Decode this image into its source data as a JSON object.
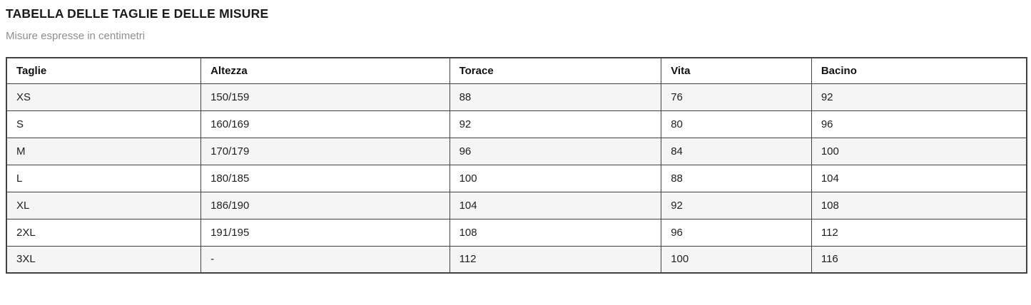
{
  "page": {
    "title": "TABELLA DELLE TAGLIE E DELLE MISURE",
    "subtitle": "Misure espresse in centimetri"
  },
  "table": {
    "columns": [
      "Taglie",
      "Altezza",
      "Torace",
      "Vita",
      "Bacino"
    ],
    "rows": [
      [
        "XS",
        "150/159",
        "88",
        "76",
        "92"
      ],
      [
        "S",
        "160/169",
        "92",
        "80",
        "96"
      ],
      [
        "M",
        "170/179",
        "96",
        "84",
        "100"
      ],
      [
        "L",
        "180/185",
        "100",
        "88",
        "104"
      ],
      [
        "XL",
        "186/190",
        "104",
        "92",
        "108"
      ],
      [
        "2XL",
        "191/195",
        "108",
        "96",
        "112"
      ],
      [
        "3XL",
        "-",
        "112",
        "100",
        "116"
      ]
    ]
  },
  "colors": {
    "stripe_row_background": "#f5f5f5",
    "table_border": "#424242",
    "title_text": "#1b1b1b",
    "subtitle_text": "#8f8f8f",
    "cell_text": "#212121"
  }
}
